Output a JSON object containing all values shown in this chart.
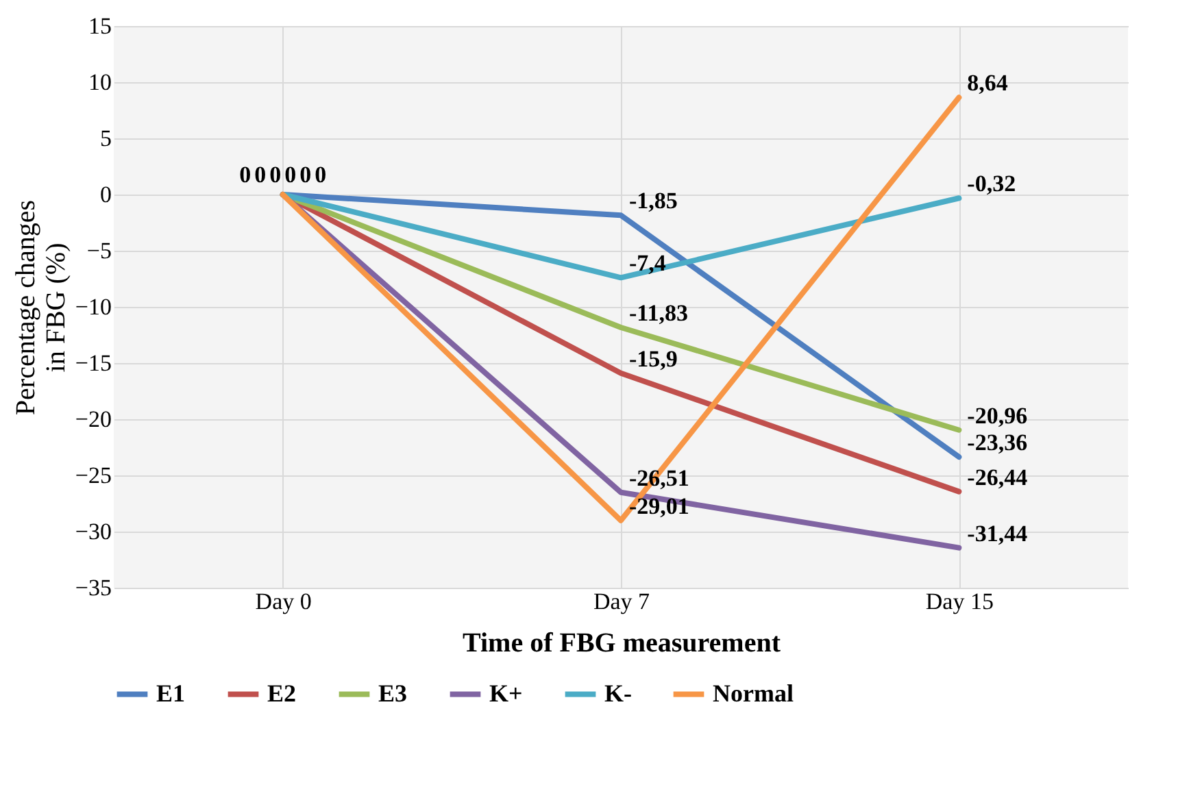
{
  "chart_data": {
    "type": "line",
    "xlabel": "Time of FBG measurement",
    "ylabel": "Percentage changes in FBG (%)",
    "categories": [
      "Day 0",
      "Day 7",
      "Day 15"
    ],
    "ylim": [
      -35,
      15
    ],
    "yticks": [
      -35,
      -30,
      -25,
      -20,
      -15,
      -10,
      -5,
      0,
      5,
      10,
      15
    ],
    "grid": true,
    "legend": "bottom",
    "marker": "none",
    "line_style": "solid",
    "series": [
      {
        "name": "E1",
        "color": "#4f7fc0",
        "values": [
          0,
          -1.85,
          -23.36
        ],
        "value_labels": [
          "0",
          "-1,85",
          "-23,36"
        ]
      },
      {
        "name": "E2",
        "color": "#c0504d",
        "values": [
          0,
          -15.9,
          -26.44
        ],
        "value_labels": [
          "0",
          "-15,9",
          "-26,44"
        ]
      },
      {
        "name": "E3",
        "color": "#9bbb59",
        "values": [
          0,
          -11.83,
          -20.96
        ],
        "value_labels": [
          "0",
          "-11,83",
          "-20,96"
        ]
      },
      {
        "name": "K+",
        "color": "#8064a2",
        "values": [
          0,
          -26.51,
          -31.44
        ],
        "value_labels": [
          "0",
          "-26,51",
          "-31,44"
        ]
      },
      {
        "name": "K-",
        "color": "#4bacc6",
        "values": [
          0,
          -7.4,
          -0.32
        ],
        "value_labels": [
          "0",
          "-7,4",
          "-0,32"
        ]
      },
      {
        "name": "Normal",
        "color": "#f79646",
        "values": [
          0,
          -29.01,
          8.64
        ],
        "value_labels": [
          "0",
          "-29,01",
          "8,64"
        ]
      }
    ]
  }
}
